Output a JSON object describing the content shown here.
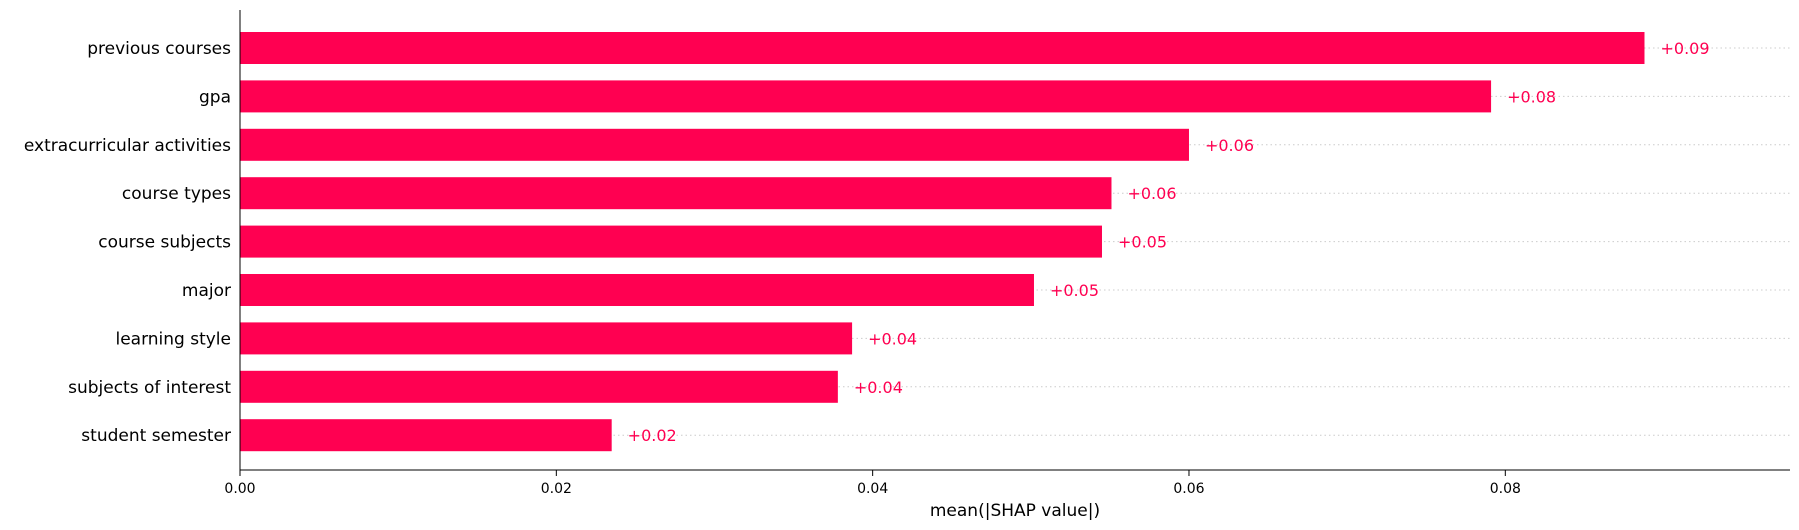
{
  "chart_data": {
    "type": "bar",
    "orientation": "horizontal",
    "categories": [
      "previous courses",
      "gpa",
      "extracurricular activities",
      "course types",
      "course subjects",
      "major",
      "learning style",
      "subjects of interest",
      "student semester"
    ],
    "values": [
      0.0888,
      0.0791,
      0.06,
      0.0551,
      0.0545,
      0.0502,
      0.0387,
      0.0378,
      0.0235
    ],
    "value_labels": [
      "+0.09",
      "+0.08",
      "+0.06",
      "+0.06",
      "+0.05",
      "+0.05",
      "+0.04",
      "+0.04",
      "+0.02"
    ],
    "xlabel": "mean(|SHAP value|)",
    "ylabel": "",
    "title": "",
    "xlim": [
      0,
      0.098
    ],
    "xticks": [
      0.0,
      0.02,
      0.04,
      0.06,
      0.08
    ],
    "xtick_labels": [
      "0.00",
      "0.02",
      "0.04",
      "0.06",
      "0.08"
    ],
    "bar_color": "#ff0051",
    "grid": "dotted horizontal guides per row"
  }
}
